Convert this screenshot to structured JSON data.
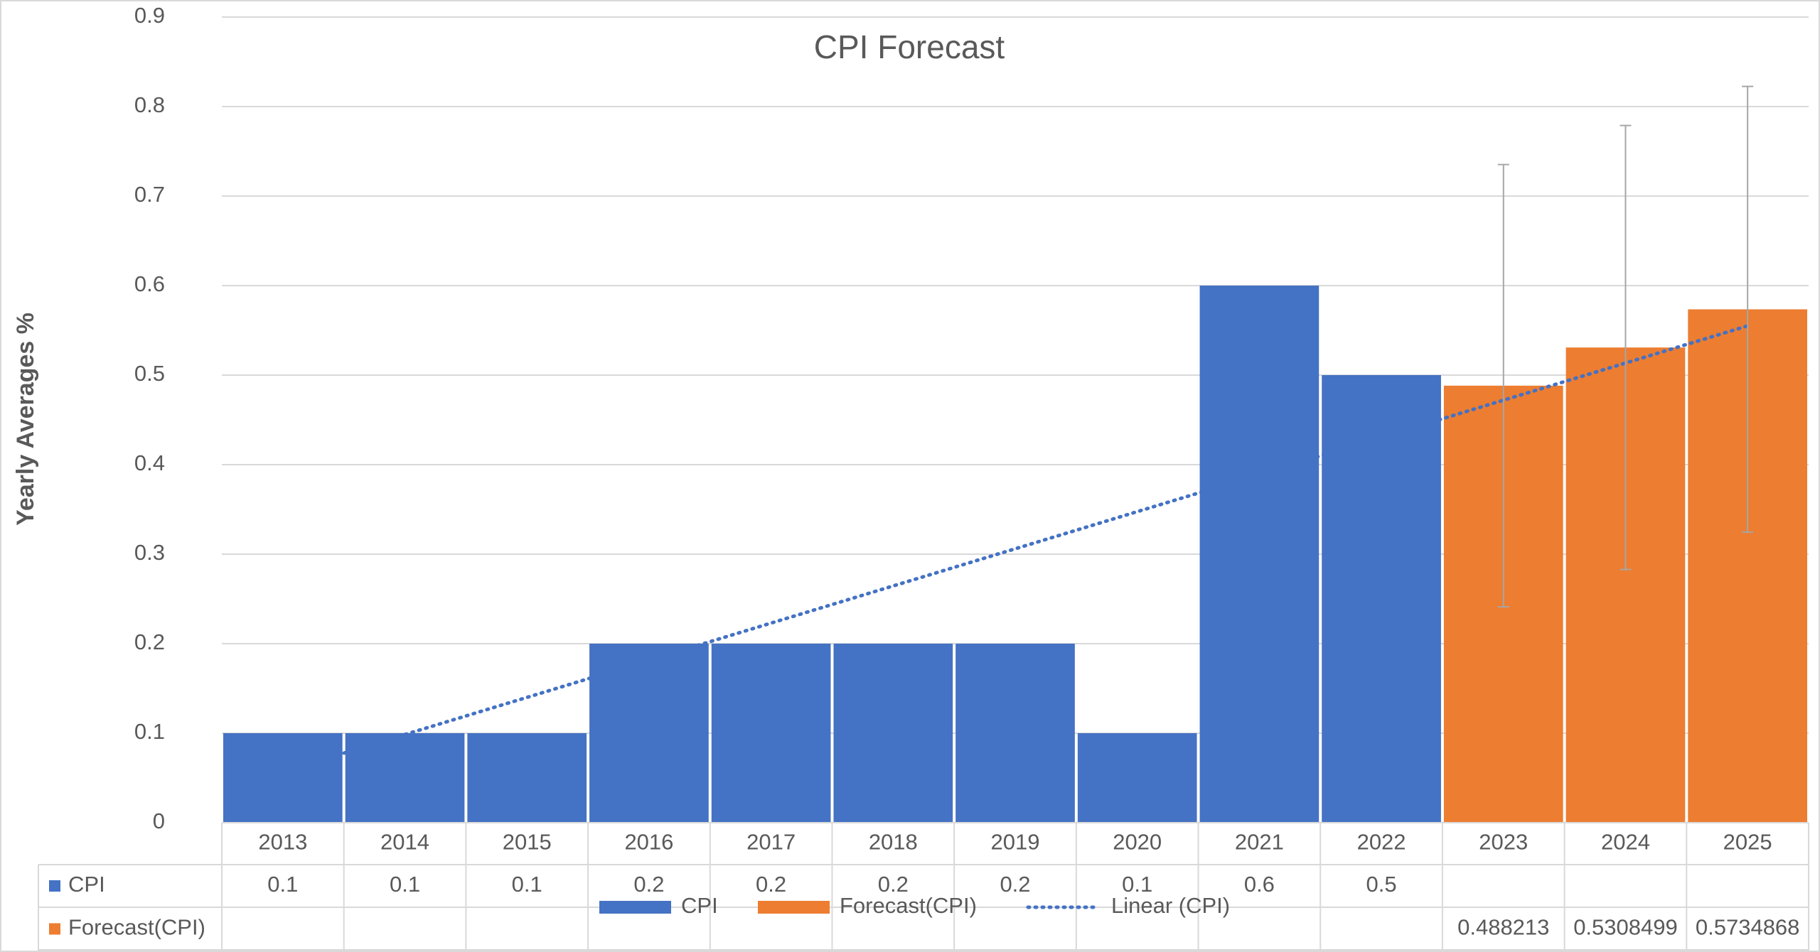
{
  "chart_data": {
    "type": "bar",
    "title": "CPI Forecast",
    "y_label": "Yearly Averages %",
    "categories": [
      "2013",
      "2014",
      "2015",
      "2016",
      "2017",
      "2018",
      "2019",
      "2020",
      "2021",
      "2022",
      "2023",
      "2024",
      "2025"
    ],
    "series": [
      {
        "name": "CPI",
        "color": "#4472c4",
        "values": [
          0.1,
          0.1,
          0.1,
          0.2,
          0.2,
          0.2,
          0.2,
          0.1,
          0.6,
          0.5,
          null,
          null,
          null
        ]
      },
      {
        "name": "Forecast(CPI)",
        "color": "#ed7d31",
        "values": [
          null,
          null,
          null,
          null,
          null,
          null,
          null,
          null,
          null,
          null,
          0.488213,
          0.5308499,
          0.5734868
        ],
        "errors": [
          null,
          null,
          null,
          null,
          null,
          null,
          null,
          null,
          null,
          null,
          0.247,
          0.248,
          0.249
        ]
      }
    ],
    "trendline": {
      "name": "Linear (CPI)",
      "color": "#4472c4",
      "values": [
        0.057,
        0.555
      ]
    },
    "ylim": [
      0,
      0.9
    ],
    "yticks": [
      0,
      0.1,
      0.2,
      0.3,
      0.4,
      0.5,
      0.6,
      0.7,
      0.8,
      0.9
    ],
    "grid": true,
    "data_table": true
  }
}
